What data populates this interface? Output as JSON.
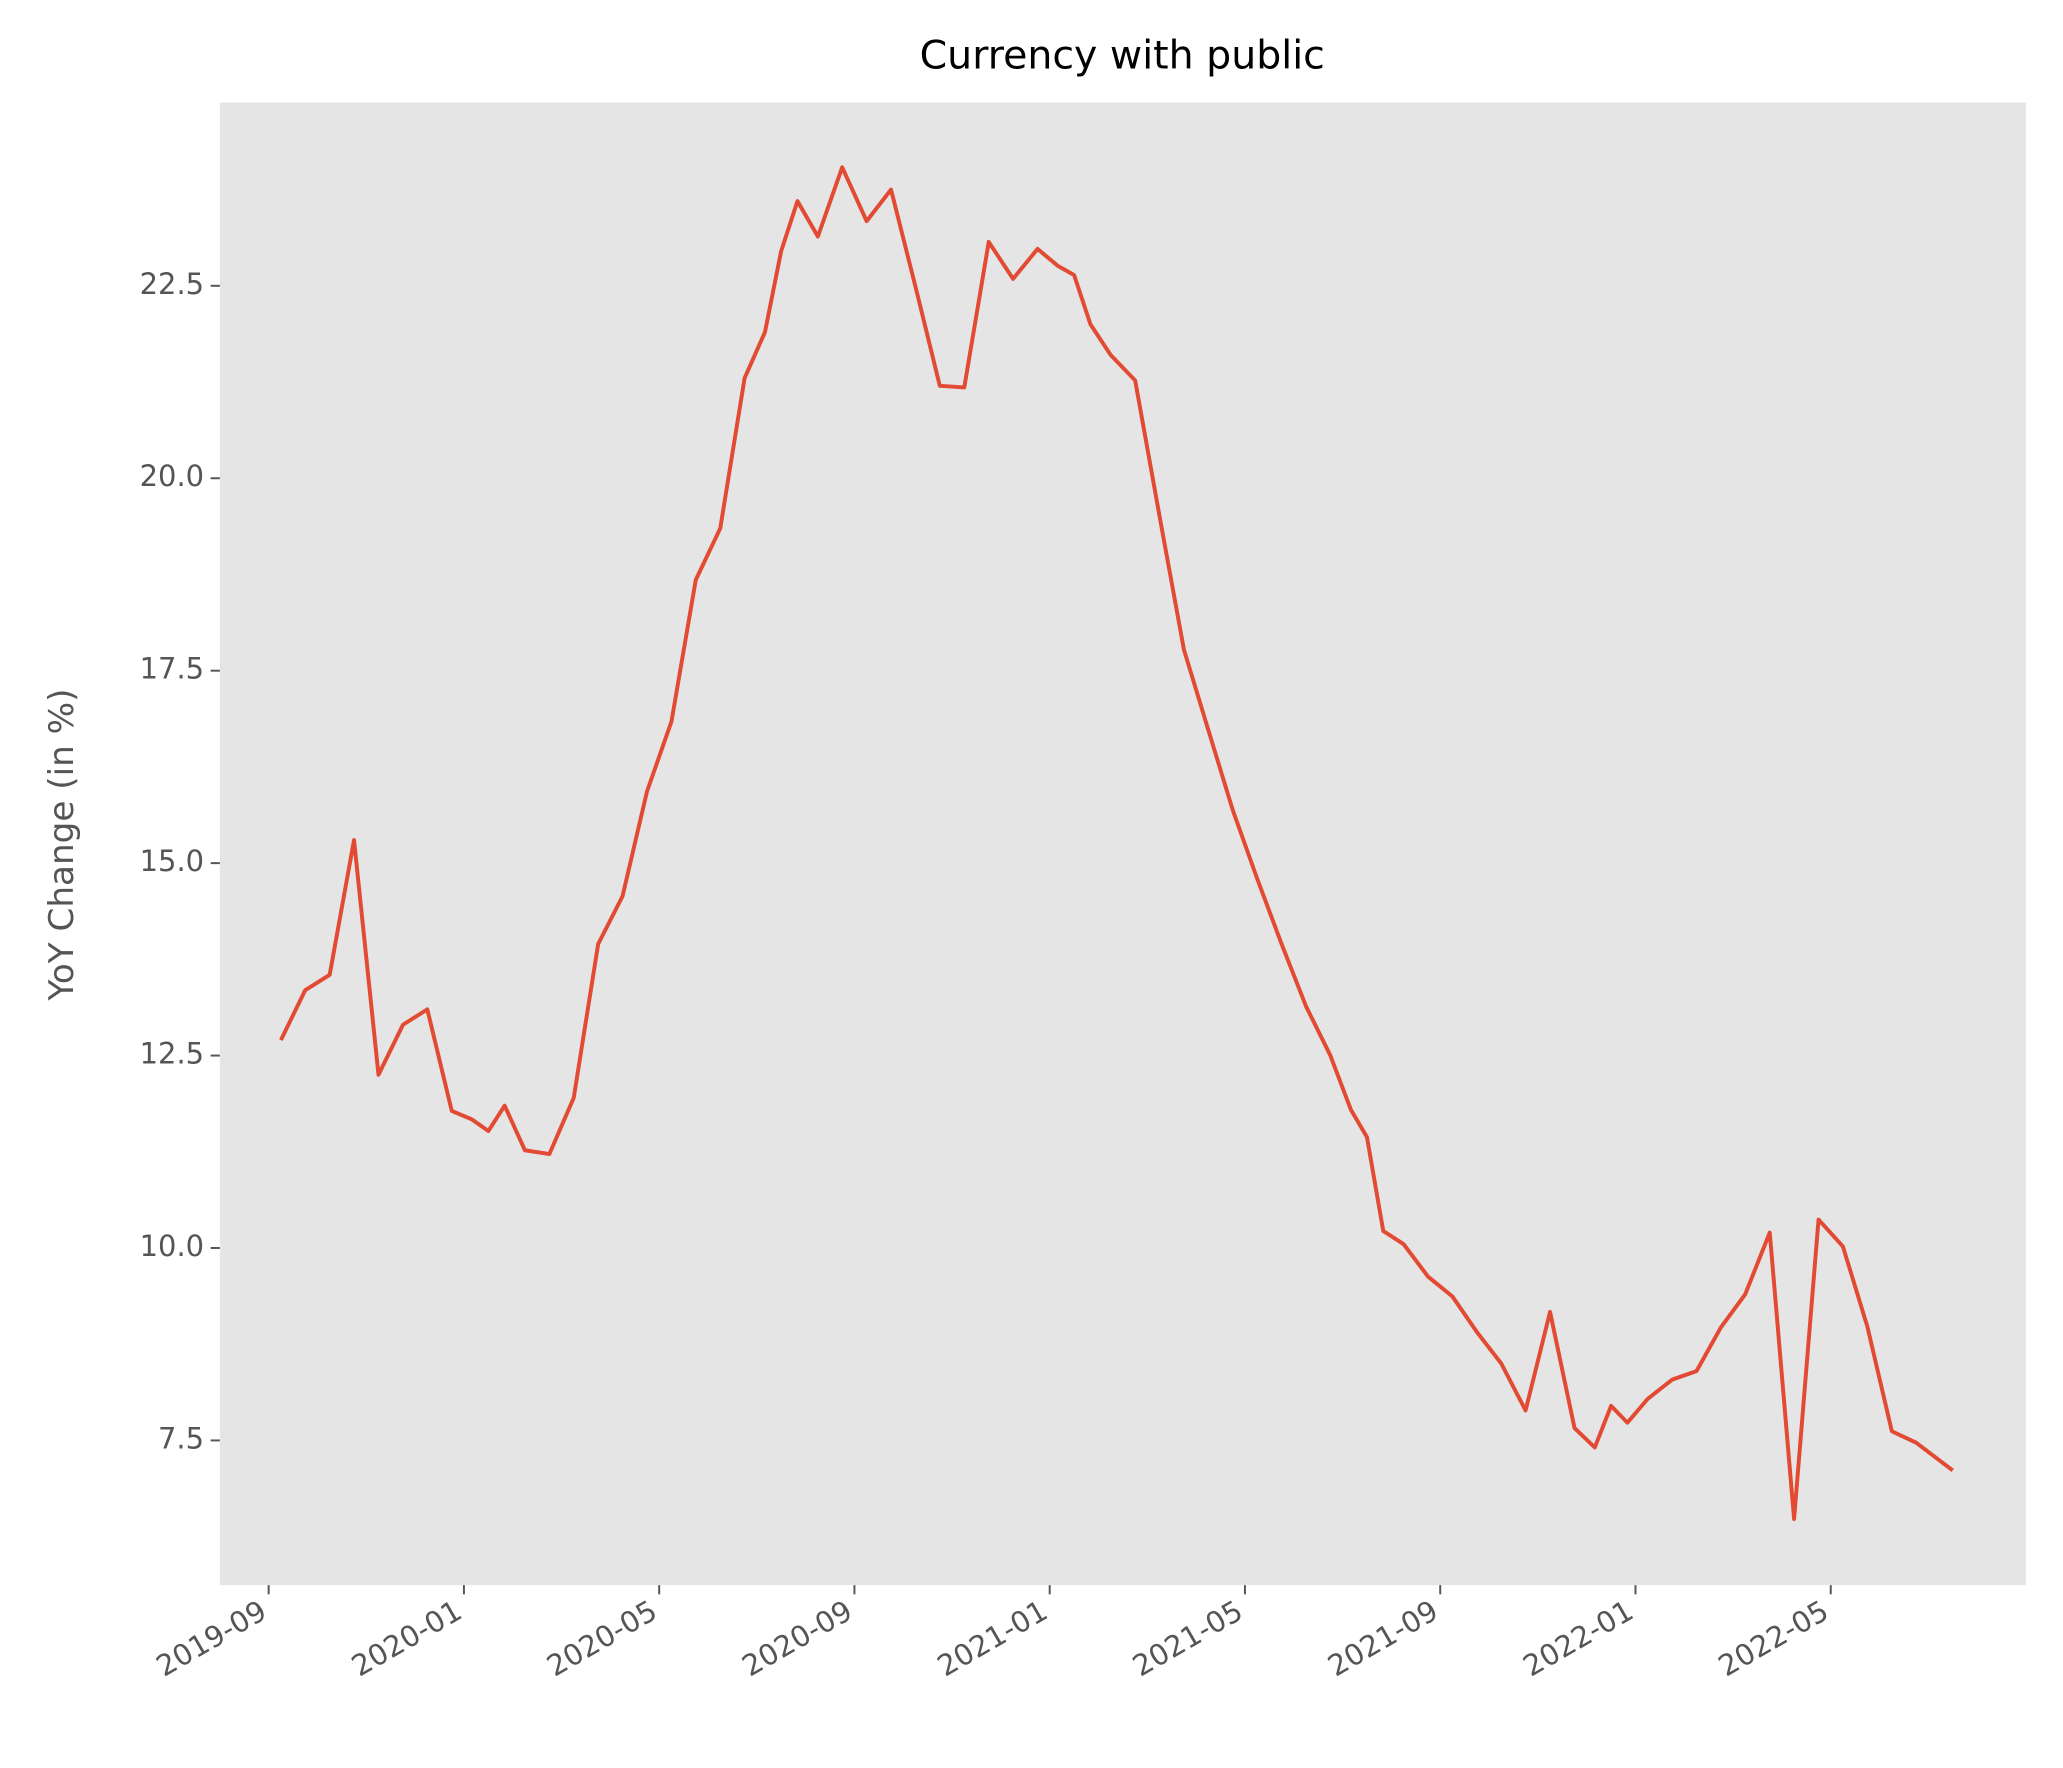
{
  "chart_data": {
    "type": "line",
    "title": "Currency with public",
    "y_label": "YoY Change (in %)",
    "x": [
      "2019-09",
      "2019-09",
      "2019-10",
      "2019-10",
      "2019-11",
      "2019-11",
      "2019-12",
      "2019-12",
      "2020-01",
      "2020-01",
      "2020-01",
      "2020-02",
      "2020-02",
      "2020-03",
      "2020-03",
      "2020-04",
      "2020-04",
      "2020-05",
      "2020-05",
      "2020-06",
      "2020-06",
      "2020-07",
      "2020-07",
      "2020-07",
      "2020-08",
      "2020-08",
      "2020-09",
      "2020-09",
      "2020-10",
      "2020-10",
      "2020-11",
      "2020-11",
      "2020-12",
      "2020-12",
      "2021-01",
      "2021-01",
      "2021-01",
      "2021-02",
      "2021-02",
      "2021-03",
      "2021-03",
      "2021-04",
      "2021-04",
      "2021-05",
      "2021-05",
      "2021-06",
      "2021-06",
      "2021-07",
      "2021-07",
      "2021-07",
      "2021-08",
      "2021-08",
      "2021-09",
      "2021-09",
      "2021-10",
      "2021-10",
      "2021-11",
      "2021-11",
      "2021-12",
      "2021-12",
      "2021-12",
      "2022-01",
      "2022-01",
      "2022-02",
      "2022-02",
      "2022-03",
      "2022-03",
      "2022-04",
      "2022-04",
      "2022-05",
      "2022-05",
      "2022-06",
      "2022-06",
      "2022-07"
    ],
    "series": [
      {
        "name": "Currency with public",
        "color": "#e24a33",
        "values": [
          12.7,
          13.35,
          13.55,
          15.3,
          12.25,
          12.9,
          13.1,
          11.78,
          11.67,
          11.52,
          11.85,
          11.27,
          11.22,
          11.95,
          13.95,
          14.57,
          15.93,
          16.84,
          18.68,
          19.35,
          21.3,
          21.9,
          22.95,
          23.6,
          23.14,
          24.04,
          23.34,
          23.75,
          22.49,
          21.2,
          21.18,
          23.07,
          22.59,
          22.98,
          22.76,
          22.64,
          22.0,
          21.6,
          21.27,
          19.51,
          17.77,
          16.73,
          15.69,
          14.8,
          13.95,
          13.14,
          12.5,
          11.8,
          11.44,
          10.22,
          10.05,
          9.63,
          9.37,
          8.91,
          8.5,
          7.89,
          9.17,
          7.66,
          7.41,
          7.95,
          7.73,
          8.04,
          8.29,
          8.4,
          8.97,
          9.4,
          10.2,
          6.48,
          10.37,
          10.02,
          8.98,
          7.62,
          7.47,
          7.11
        ]
      }
    ],
    "xlim": [
      "2019-08",
      "2022-09"
    ],
    "xticks": [
      "2019-09",
      "2020-01",
      "2020-05",
      "2020-09",
      "2021-01",
      "2021-05",
      "2021-09",
      "2022-01",
      "2022-05"
    ],
    "ylim": [
      5.62,
      24.88
    ],
    "yticks": [
      7.5,
      {
        "value": 10,
        "label": "10.0"
      },
      12.5,
      {
        "value": 15,
        "label": "15.0"
      },
      17.5,
      {
        "value": 20,
        "label": "20.0"
      },
      22.5
    ],
    "grid": false,
    "background": "#e5e5e5"
  }
}
